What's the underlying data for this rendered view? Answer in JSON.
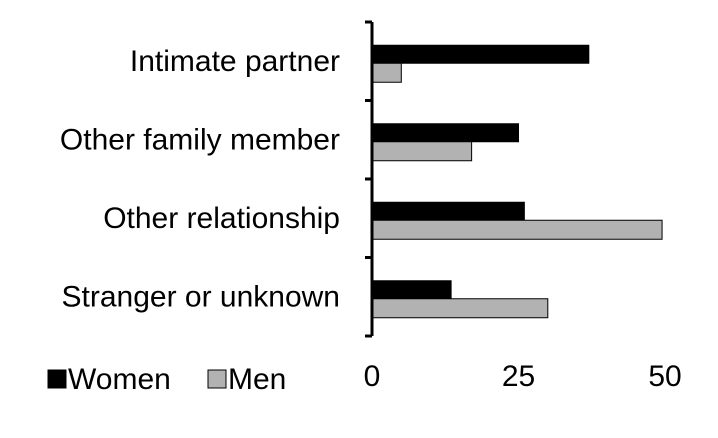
{
  "chart_data": {
    "type": "bar",
    "orientation": "horizontal",
    "categories": [
      "Intimate partner",
      "Other family member",
      "Other relationship",
      "Stranger or unknown"
    ],
    "series": [
      {
        "name": "Women",
        "color": "#000000",
        "values": [
          37,
          25,
          26,
          13.5
        ]
      },
      {
        "name": "Men",
        "color": "#b2b2b2",
        "values": [
          5,
          17,
          49.5,
          30
        ]
      }
    ],
    "xlim": [
      0,
      50
    ],
    "xticks": [
      0,
      25,
      50
    ],
    "grid": false,
    "legend": "bottom-left"
  }
}
